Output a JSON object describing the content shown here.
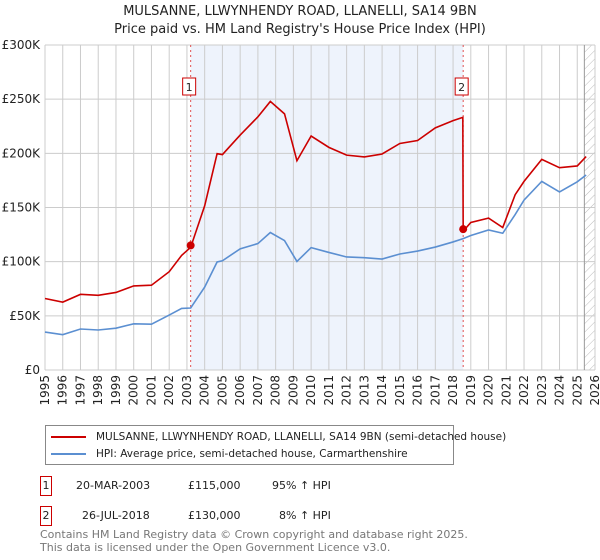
{
  "chart_data": {
    "type": "line",
    "title": "MULSANNE, LLWYNHENDY ROAD, LLANELLI, SA14 9BN",
    "subtitle": "Price paid vs. HM Land Registry's House Price Index (HPI)",
    "xlim": [
      1995,
      2026
    ],
    "ylim": [
      0,
      300000
    ],
    "y_ticks": [
      {
        "v": 0,
        "label": "£0"
      },
      {
        "v": 50000,
        "label": "£50K"
      },
      {
        "v": 100000,
        "label": "£100K"
      },
      {
        "v": 150000,
        "label": "£150K"
      },
      {
        "v": 200000,
        "label": "£200K"
      },
      {
        "v": 250000,
        "label": "£250K"
      },
      {
        "v": 300000,
        "label": "£300K"
      }
    ],
    "x_ticks": [
      "1995",
      "1996",
      "1997",
      "1998",
      "1999",
      "2000",
      "2001",
      "2002",
      "2003",
      "2004",
      "2005",
      "2006",
      "2007",
      "2008",
      "2009",
      "2010",
      "2011",
      "2012",
      "2013",
      "2014",
      "2015",
      "2016",
      "2017",
      "2018",
      "2019",
      "2020",
      "2021",
      "2022",
      "2023",
      "2024",
      "2025",
      "2026"
    ],
    "series": [
      {
        "name": "MULSANNE, LLWYNHENDY ROAD, LLANELLI, SA14 9BN (semi-detached house)",
        "color": "#cc0000",
        "x": [
          1995,
          1996,
          1997,
          1998,
          1999,
          2000,
          2001,
          2002,
          2002.7,
          2003.21,
          2004,
          2004.7,
          2005,
          2006,
          2007,
          2007.7,
          2008.5,
          2009.2,
          2010,
          2011,
          2012,
          2013,
          2014,
          2015,
          2016,
          2017,
          2018,
          2018.55,
          2018.57,
          2019,
          2020,
          2020.8,
          2021.5,
          2022,
          2023,
          2024,
          2025,
          2025.5
        ],
        "y": [
          66000,
          64000,
          68000,
          70000,
          72000,
          76000,
          80000,
          90000,
          105000,
          115000,
          150000,
          200000,
          200000,
          215000,
          235000,
          248000,
          235000,
          195000,
          215000,
          205000,
          200000,
          195000,
          200000,
          210000,
          210000,
          225000,
          230000,
          232000,
          130000,
          135000,
          140000,
          133000,
          160000,
          175000,
          195000,
          185000,
          190000,
          197000
        ]
      },
      {
        "name": "HPI: Average price, semi-detached house, Carmarthenshire",
        "color": "#5b8fd1",
        "x": [
          1995,
          1996,
          1997,
          1998,
          1999,
          2000,
          2001,
          2002,
          2002.7,
          2003.21,
          2004,
          2004.7,
          2005,
          2006,
          2007,
          2007.7,
          2008.5,
          2009.2,
          2010,
          2011,
          2012,
          2013,
          2014,
          2015,
          2016,
          2017,
          2018,
          2018.57,
          2019,
          2020,
          2020.8,
          2021.5,
          2022,
          2023,
          2024,
          2025,
          2025.5
        ],
        "y": [
          35000,
          34000,
          36000,
          38000,
          39000,
          41000,
          44000,
          50000,
          56000,
          59000,
          75000,
          100000,
          102000,
          110000,
          118000,
          127000,
          118000,
          102000,
          112000,
          108000,
          106000,
          102000,
          103000,
          108000,
          108000,
          115000,
          118000,
          120000,
          126000,
          128000,
          126000,
          145000,
          155000,
          175000,
          165000,
          172000,
          180000
        ]
      }
    ],
    "annotations": [
      {
        "label": "1",
        "x": 2003.21,
        "y": 115000
      },
      {
        "label": "2",
        "x": 2018.57,
        "y": 130000
      }
    ],
    "shaded_range": [
      2003.21,
      2018.57
    ],
    "forecast_hatch_from": 2025.4
  },
  "legend": {
    "red": "MULSANNE, LLWYNHENDY ROAD, LLANELLI, SA14 9BN (semi-detached house)",
    "blue": "HPI: Average price, semi-detached house, Carmarthenshire"
  },
  "transactions": [
    {
      "num": "1",
      "date": "20-MAR-2003",
      "price": "£115,000",
      "hpi": "95% ↑ HPI"
    },
    {
      "num": "2",
      "date": "26-JUL-2018",
      "price": "£130,000",
      "hpi": "8% ↑ HPI"
    }
  ],
  "footer": {
    "line1": "Contains HM Land Registry data © Crown copyright and database right 2025.",
    "line2": "This data is licensed under the Open Government Licence v3.0."
  }
}
